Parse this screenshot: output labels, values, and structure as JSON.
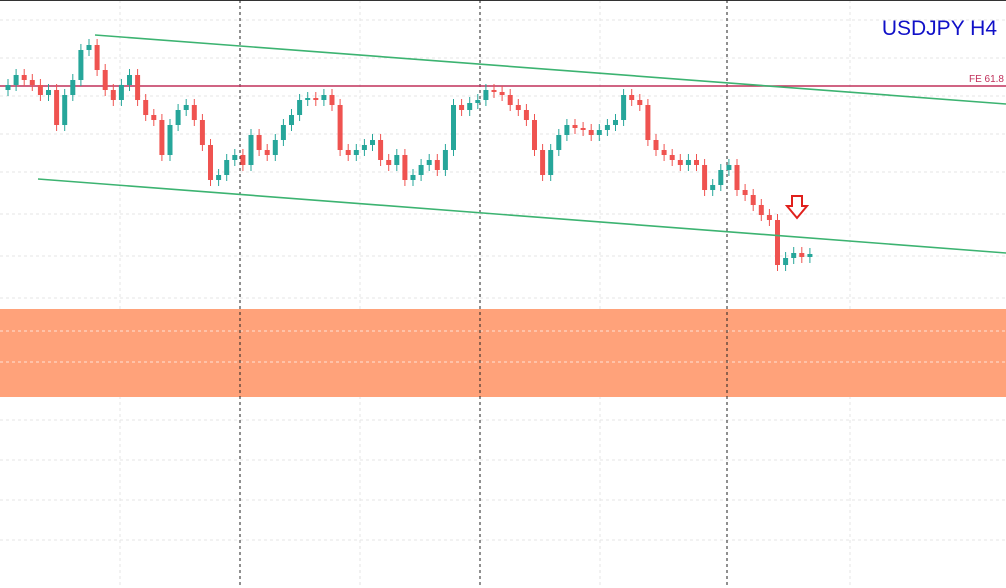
{
  "chart_data": {
    "type": "candlestick",
    "title": "USDJPY H4",
    "level_label": "FE 61.8",
    "up_color": "#26a69a",
    "down_color": "#ef5350",
    "ylim": [
      0,
      588
    ],
    "categories": [
      null,
      null,
      null,
      null,
      null,
      null,
      null,
      null,
      null,
      null,
      null,
      null,
      null,
      null,
      null,
      null,
      null,
      null,
      null,
      null,
      null,
      null,
      null,
      null,
      null,
      null,
      null,
      null,
      null,
      null,
      null,
      null,
      null,
      null,
      null,
      null,
      null,
      null,
      null,
      null,
      null,
      null,
      null,
      null,
      null,
      null,
      null,
      null,
      null,
      null,
      null,
      null,
      null,
      null,
      null,
      null,
      null,
      null,
      null,
      null,
      null,
      null,
      null,
      null,
      null,
      null,
      null,
      null,
      null,
      null,
      null,
      null,
      null,
      null,
      null,
      null,
      null,
      null,
      null,
      null,
      null,
      null,
      null,
      null,
      null,
      null,
      null,
      null,
      null,
      null,
      null,
      null,
      null,
      null,
      null,
      null,
      null,
      null,
      null,
      null
    ],
    "open": [
      498,
      503,
      513,
      508,
      503,
      493,
      498,
      463,
      493,
      508,
      538,
      543,
      518,
      498,
      488,
      503,
      513,
      488,
      473,
      468,
      433,
      463,
      478,
      483,
      468,
      443,
      408,
      413,
      428,
      433,
      423,
      453,
      438,
      433,
      448,
      463,
      473,
      488,
      490,
      488,
      493,
      483,
      438,
      433,
      438,
      443,
      448,
      428,
      423,
      433,
      408,
      413,
      423,
      428,
      418,
      438,
      483,
      478,
      485,
      488,
      498,
      496,
      493,
      483,
      478,
      468,
      438,
      413,
      438,
      453,
      463,
      460,
      458,
      453,
      458,
      463,
      468,
      493,
      488,
      483,
      448,
      438,
      433,
      428,
      423,
      428,
      423,
      398,
      403,
      418,
      423,
      398,
      393,
      383,
      373,
      368,
      323,
      330,
      335,
      331
    ],
    "high": [
      509,
      519,
      519,
      514,
      509,
      504,
      504,
      499,
      514,
      544,
      549,
      549,
      524,
      504,
      509,
      519,
      519,
      494,
      479,
      474,
      469,
      484,
      489,
      489,
      474,
      449,
      419,
      434,
      439,
      439,
      459,
      459,
      444,
      454,
      469,
      479,
      494,
      496,
      496,
      499,
      499,
      489,
      444,
      444,
      449,
      454,
      454,
      434,
      439,
      439,
      419,
      429,
      434,
      434,
      444,
      489,
      489,
      491,
      494,
      504,
      504,
      502,
      499,
      489,
      484,
      474,
      444,
      444,
      459,
      469,
      469,
      466,
      464,
      464,
      469,
      474,
      499,
      499,
      494,
      489,
      454,
      444,
      439,
      434,
      434,
      434,
      429,
      409,
      424,
      429,
      429,
      404,
      399,
      389,
      379,
      374,
      336,
      341,
      341,
      340
    ],
    "low": [
      492,
      497,
      502,
      497,
      487,
      487,
      457,
      457,
      487,
      502,
      532,
      512,
      492,
      482,
      482,
      497,
      482,
      467,
      462,
      427,
      427,
      457,
      472,
      462,
      437,
      402,
      402,
      407,
      422,
      417,
      417,
      432,
      427,
      427,
      442,
      457,
      467,
      482,
      482,
      482,
      477,
      432,
      427,
      427,
      432,
      437,
      422,
      417,
      417,
      402,
      402,
      407,
      417,
      412,
      412,
      432,
      472,
      472,
      479,
      482,
      490,
      487,
      477,
      472,
      462,
      432,
      407,
      407,
      432,
      447,
      454,
      452,
      447,
      447,
      452,
      457,
      462,
      482,
      477,
      442,
      432,
      427,
      422,
      417,
      417,
      417,
      392,
      392,
      397,
      412,
      392,
      387,
      377,
      367,
      362,
      317,
      317,
      324,
      325,
      325
    ],
    "close": [
      503,
      513,
      508,
      503,
      493,
      498,
      463,
      493,
      508,
      538,
      543,
      518,
      498,
      488,
      503,
      513,
      488,
      473,
      468,
      433,
      463,
      478,
      483,
      468,
      443,
      408,
      413,
      428,
      433,
      423,
      453,
      438,
      433,
      448,
      463,
      473,
      488,
      490,
      488,
      493,
      483,
      438,
      433,
      438,
      443,
      448,
      428,
      423,
      433,
      408,
      413,
      423,
      428,
      418,
      438,
      483,
      478,
      485,
      488,
      498,
      496,
      493,
      483,
      478,
      468,
      438,
      413,
      438,
      453,
      463,
      460,
      458,
      453,
      458,
      463,
      468,
      493,
      488,
      483,
      448,
      438,
      433,
      428,
      423,
      428,
      423,
      398,
      403,
      418,
      423,
      398,
      393,
      383,
      373,
      368,
      323,
      330,
      335,
      331,
      334
    ]
  }
}
